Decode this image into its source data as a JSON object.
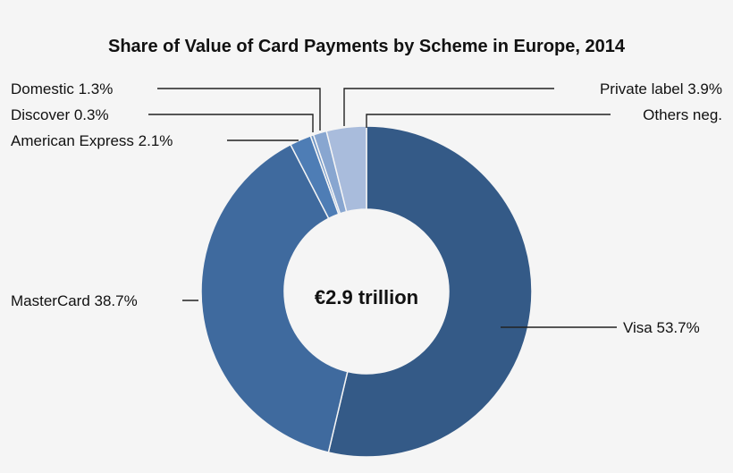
{
  "chart_data": {
    "type": "pie",
    "title": "Share of Value of Card Payments by Scheme in Europe, 2014",
    "center_label": "€2.9 trillion",
    "slices": [
      {
        "name": "Visa",
        "value": 53.7,
        "label": "Visa 53.7%",
        "color": "#345a87"
      },
      {
        "name": "MasterCard",
        "value": 38.7,
        "label": "MasterCard 38.7%",
        "color": "#3f6a9e"
      },
      {
        "name": "American Express",
        "value": 2.1,
        "label": "American Express 2.1%",
        "color": "#4e7db5"
      },
      {
        "name": "Discover",
        "value": 0.3,
        "label": "Discover 0.3%",
        "color": "#6d94c4"
      },
      {
        "name": "Domestic",
        "value": 1.3,
        "label": "Domestic 1.3%",
        "color": "#88a6d0"
      },
      {
        "name": "Private label",
        "value": 3.9,
        "label": "Private label 3.9%",
        "color": "#a9bcdc"
      },
      {
        "name": "Others",
        "value": 0,
        "label": "Others neg.",
        "color": "#c5d2e8"
      }
    ]
  }
}
